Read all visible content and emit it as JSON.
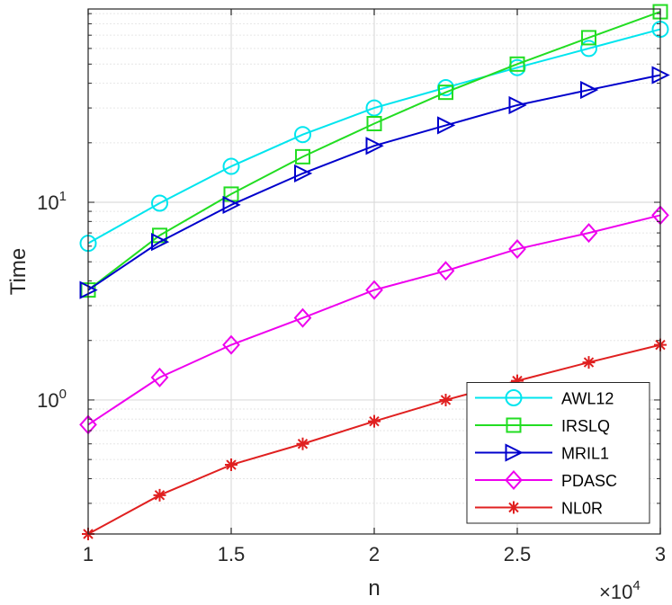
{
  "chart_data": {
    "type": "line",
    "title": "",
    "xlabel": "n",
    "ylabel": "Time",
    "x_multiplier_label": "×10",
    "x_multiplier_exp": "4",
    "x": [
      1.0,
      1.25,
      1.5,
      1.75,
      2.0,
      2.25,
      2.5,
      2.75,
      3.0
    ],
    "xlim": [
      1,
      3
    ],
    "ylim": [
      0.21,
      95
    ],
    "yscale": "log",
    "grid": true,
    "legend_position": "bottom-right",
    "x_ticks": [
      1,
      1.5,
      2,
      2.5,
      3
    ],
    "x_tick_labels": [
      "1",
      "1.5",
      "2",
      "2.5",
      "3"
    ],
    "y_ticks": [
      {
        "value": 1,
        "base": "10",
        "exp": "0"
      },
      {
        "value": 10,
        "base": "10",
        "exp": "1"
      }
    ],
    "series": [
      {
        "name": "AWL12",
        "color": "#00e5ee",
        "marker": "circle",
        "values": [
          6.2,
          9.9,
          15.2,
          22.0,
          30.0,
          38.0,
          48.0,
          60.0,
          75.0
        ]
      },
      {
        "name": "IRSLQ",
        "color": "#22dd22",
        "marker": "square",
        "values": [
          3.6,
          6.8,
          11.0,
          17.0,
          25.0,
          36.0,
          50.0,
          68.0,
          92.0
        ]
      },
      {
        "name": "MRIL1",
        "color": "#0000cc",
        "marker": "triangle-right",
        "values": [
          3.6,
          6.3,
          9.7,
          14.0,
          19.3,
          24.5,
          31.0,
          37.0,
          44.0
        ]
      },
      {
        "name": "PDASC",
        "color": "#ee00ee",
        "marker": "diamond",
        "values": [
          0.75,
          1.3,
          1.9,
          2.6,
          3.6,
          4.5,
          5.8,
          7.0,
          8.6
        ]
      },
      {
        "name": "NL0R",
        "color": "#e02020",
        "marker": "asterisk",
        "values": [
          0.21,
          0.33,
          0.47,
          0.6,
          0.78,
          1.0,
          1.25,
          1.55,
          1.9
        ]
      }
    ]
  }
}
